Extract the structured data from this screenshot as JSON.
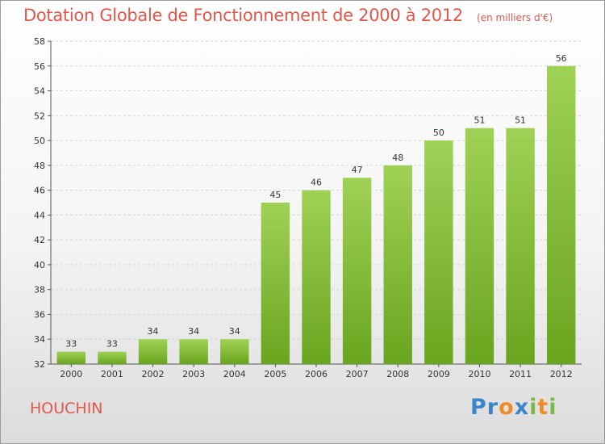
{
  "title": "Dotation Globale de Fonctionnement de 2000 à 2012",
  "subtitle": "(en milliers d'€)",
  "commune": "HOUCHIN",
  "brand": {
    "letters": [
      {
        "ch": "P",
        "color": "#3b86c9"
      },
      {
        "ch": "r",
        "color": "#3b86c9"
      },
      {
        "ch": "o",
        "color": "#f08a24"
      },
      {
        "ch": "x",
        "color": "#3b86c9"
      },
      {
        "ch": "i",
        "color": "#7ab648"
      },
      {
        "ch": "t",
        "color": "#f08a24"
      },
      {
        "ch": "i",
        "color": "#7ab648"
      }
    ]
  },
  "chart_data": {
    "type": "bar",
    "categories": [
      "2000",
      "2001",
      "2002",
      "2003",
      "2004",
      "2005",
      "2006",
      "2007",
      "2008",
      "2009",
      "2010",
      "2011",
      "2012"
    ],
    "values": [
      33,
      33,
      34,
      34,
      34,
      45,
      46,
      47,
      48,
      50,
      51,
      51,
      56
    ],
    "ylim": [
      32,
      58
    ],
    "yticks": [
      32,
      34,
      36,
      38,
      40,
      42,
      44,
      46,
      48,
      50,
      52,
      54,
      56,
      58
    ],
    "grid": true,
    "bar_color_top": "#9fd155",
    "bar_color_bottom": "#6aa51f"
  }
}
